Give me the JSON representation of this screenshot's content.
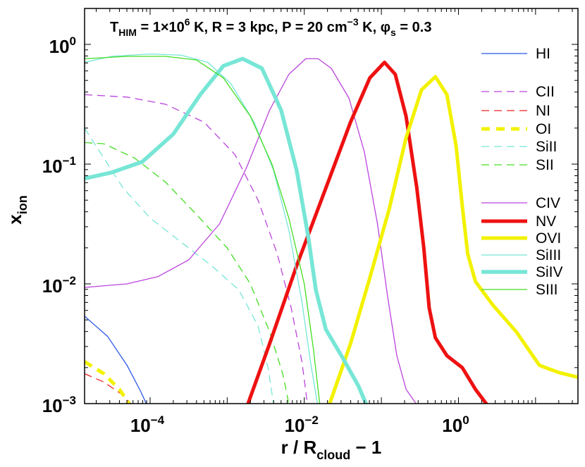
{
  "chart_data": {
    "type": "line",
    "title": {
      "t_sym": "T",
      "t_sub": "HIM",
      "t_val": "= 1×10",
      "t_exp": "6",
      "t_unit": " K,  R = 3 kpc,  P = 20 cm",
      "p_exp": "−3",
      "p_unit": " K,  ",
      "phi": "φ",
      "phi_sub": "s",
      "phi_val": " = 0.3"
    },
    "xlabel": {
      "main": "r / R",
      "sub": "cloud",
      "rest": " − 1"
    },
    "ylabel": {
      "main": "x",
      "sub": "ion"
    },
    "xscale": "log",
    "yscale": "log",
    "xlim_log10": [
      -4.85,
      1.55
    ],
    "ylim_log10": [
      -3,
      0.3
    ],
    "xticks": [
      {
        "log": -4,
        "base": "10",
        "exp": "−4"
      },
      {
        "log": -2,
        "base": "10",
        "exp": "−2"
      },
      {
        "log": 0,
        "base": "10",
        "exp": "0"
      }
    ],
    "yticks": [
      {
        "log": 0,
        "base": "10",
        "exp": "0"
      },
      {
        "log": -1,
        "base": "10",
        "exp": "−1"
      },
      {
        "log": -2,
        "base": "10",
        "exp": "−2"
      },
      {
        "log": -3,
        "base": "10",
        "exp": "−3"
      }
    ],
    "series": [
      {
        "name": "HI",
        "color": "#2b57e6",
        "width": 1.3,
        "dash": "",
        "legend_label": "HI",
        "points": [
          [
            -4.85,
            -2.27
          ],
          [
            -4.55,
            -2.44
          ],
          [
            -4.3,
            -2.68
          ],
          [
            -4.12,
            -2.9
          ],
          [
            -4.05,
            -3.0
          ]
        ]
      },
      {
        "name": "CII",
        "color": "#bb44dd",
        "width": 1.3,
        "dash": "11,7",
        "legend_label": "CII",
        "points": [
          [
            -4.85,
            -0.42
          ],
          [
            -4.3,
            -0.44
          ],
          [
            -3.8,
            -0.5
          ],
          [
            -3.3,
            -0.65
          ],
          [
            -2.9,
            -0.92
          ],
          [
            -2.6,
            -1.3
          ],
          [
            -2.35,
            -1.75
          ],
          [
            -2.17,
            -2.2
          ],
          [
            -2.03,
            -2.65
          ],
          [
            -1.96,
            -3.0
          ]
        ]
      },
      {
        "name": "NI",
        "color": "#ee2222",
        "width": 1.3,
        "dash": "11,7",
        "legend_label": "NI",
        "points": [
          [
            -4.85,
            -2.75
          ],
          [
            -4.6,
            -2.82
          ],
          [
            -4.35,
            -2.93
          ],
          [
            -4.25,
            -3.0
          ]
        ]
      },
      {
        "name": "OI",
        "color": "#f2f200",
        "width": 5,
        "dash": "12,9",
        "legend_label": "OI",
        "points": [
          [
            -4.85,
            -2.65
          ],
          [
            -4.6,
            -2.75
          ],
          [
            -4.4,
            -2.88
          ],
          [
            -4.27,
            -3.0
          ]
        ]
      },
      {
        "name": "SiII",
        "color": "#77e6d6",
        "width": 1.3,
        "dash": "11,7",
        "legend_label": "SiII",
        "points": [
          [
            -4.85,
            -0.7
          ],
          [
            -4.65,
            -0.9
          ],
          [
            -4.35,
            -1.2
          ],
          [
            -4.0,
            -1.45
          ],
          [
            -3.6,
            -1.65
          ],
          [
            -3.2,
            -1.85
          ],
          [
            -2.85,
            -2.05
          ],
          [
            -2.6,
            -2.35
          ],
          [
            -2.47,
            -2.7
          ],
          [
            -2.4,
            -3.0
          ]
        ]
      },
      {
        "name": "SII",
        "color": "#44dd22",
        "width": 1.3,
        "dash": "11,7",
        "legend_label": "SII",
        "points": [
          [
            -4.85,
            -0.82
          ],
          [
            -4.6,
            -0.83
          ],
          [
            -4.2,
            -0.95
          ],
          [
            -3.8,
            -1.15
          ],
          [
            -3.4,
            -1.42
          ],
          [
            -3.0,
            -1.7
          ],
          [
            -2.7,
            -2.0
          ],
          [
            -2.45,
            -2.4
          ],
          [
            -2.28,
            -2.75
          ],
          [
            -2.2,
            -3.0
          ]
        ]
      },
      {
        "name": "CIV",
        "color": "#bb44dd",
        "width": 1.3,
        "dash": "",
        "legend_label": "CIV",
        "points": [
          [
            -4.85,
            -2.03
          ],
          [
            -4.3,
            -2.0
          ],
          [
            -3.9,
            -1.94
          ],
          [
            -3.5,
            -1.8
          ],
          [
            -3.1,
            -1.5
          ],
          [
            -2.75,
            -1.03
          ],
          [
            -2.45,
            -0.55
          ],
          [
            -2.2,
            -0.25
          ],
          [
            -1.98,
            -0.12
          ],
          [
            -1.82,
            -0.12
          ],
          [
            -1.65,
            -0.2
          ],
          [
            -1.42,
            -0.45
          ],
          [
            -1.22,
            -0.9
          ],
          [
            -1.05,
            -1.5
          ],
          [
            -0.92,
            -2.1
          ],
          [
            -0.8,
            -2.6
          ],
          [
            -0.68,
            -2.88
          ],
          [
            -0.55,
            -3.0
          ]
        ]
      },
      {
        "name": "NV",
        "color": "#ee1111",
        "width": 5,
        "dash": "",
        "legend_label": "NV",
        "points": [
          [
            -2.73,
            -3.0
          ],
          [
            -2.45,
            -2.5
          ],
          [
            -2.1,
            -1.85
          ],
          [
            -1.72,
            -1.2
          ],
          [
            -1.4,
            -0.65
          ],
          [
            -1.15,
            -0.28
          ],
          [
            -0.96,
            -0.15
          ],
          [
            -0.82,
            -0.25
          ],
          [
            -0.68,
            -0.6
          ],
          [
            -0.54,
            -1.2
          ],
          [
            -0.45,
            -1.7
          ],
          [
            -0.38,
            -2.2
          ],
          [
            -0.3,
            -2.45
          ],
          [
            -0.15,
            -2.6
          ],
          [
            0.05,
            -2.7
          ],
          [
            0.22,
            -2.88
          ],
          [
            0.36,
            -3.0
          ]
        ]
      },
      {
        "name": "OVI",
        "color": "#f2f200",
        "width": 5,
        "dash": "",
        "legend_label": "OVI",
        "points": [
          [
            -1.67,
            -3.0
          ],
          [
            -1.4,
            -2.5
          ],
          [
            -1.15,
            -1.95
          ],
          [
            -0.9,
            -1.38
          ],
          [
            -0.68,
            -0.78
          ],
          [
            -0.48,
            -0.38
          ],
          [
            -0.3,
            -0.27
          ],
          [
            -0.15,
            -0.42
          ],
          [
            -0.03,
            -0.85
          ],
          [
            0.05,
            -1.35
          ],
          [
            0.12,
            -1.75
          ],
          [
            0.22,
            -1.98
          ],
          [
            0.45,
            -2.18
          ],
          [
            0.75,
            -2.4
          ],
          [
            1.05,
            -2.68
          ],
          [
            1.3,
            -2.74
          ],
          [
            1.55,
            -2.78
          ]
        ]
      },
      {
        "name": "SiIII",
        "color": "#77e6d6",
        "width": 1.3,
        "dash": "",
        "legend_label": "SiIII",
        "points": [
          [
            -4.85,
            -0.15
          ],
          [
            -4.5,
            -0.1
          ],
          [
            -4.0,
            -0.08
          ],
          [
            -3.6,
            -0.09
          ],
          [
            -3.25,
            -0.15
          ],
          [
            -2.95,
            -0.33
          ],
          [
            -2.65,
            -0.65
          ],
          [
            -2.4,
            -1.05
          ],
          [
            -2.2,
            -1.55
          ],
          [
            -2.03,
            -2.15
          ],
          [
            -1.92,
            -2.65
          ],
          [
            -1.83,
            -3.0
          ]
        ]
      },
      {
        "name": "SiIV",
        "color": "#77e6d6",
        "width": 5.5,
        "dash": "",
        "legend_label": "SiIV",
        "points": [
          [
            -4.85,
            -1.12
          ],
          [
            -4.5,
            -1.07
          ],
          [
            -4.1,
            -0.98
          ],
          [
            -3.7,
            -0.75
          ],
          [
            -3.35,
            -0.42
          ],
          [
            -3.05,
            -0.18
          ],
          [
            -2.8,
            -0.12
          ],
          [
            -2.55,
            -0.2
          ],
          [
            -2.3,
            -0.55
          ],
          [
            -2.1,
            -1.05
          ],
          [
            -1.95,
            -1.6
          ],
          [
            -1.85,
            -2.05
          ],
          [
            -1.72,
            -2.38
          ],
          [
            -1.5,
            -2.62
          ],
          [
            -1.3,
            -2.85
          ],
          [
            -1.2,
            -3.0
          ]
        ]
      },
      {
        "name": "SIII",
        "color": "#44dd22",
        "width": 1.3,
        "dash": "",
        "legend_label": "SIII",
        "points": [
          [
            -4.85,
            -0.12
          ],
          [
            -4.3,
            -0.1
          ],
          [
            -3.8,
            -0.1
          ],
          [
            -3.4,
            -0.13
          ],
          [
            -3.05,
            -0.28
          ],
          [
            -2.7,
            -0.6
          ],
          [
            -2.42,
            -1.0
          ],
          [
            -2.2,
            -1.45
          ],
          [
            -2.0,
            -2.0
          ],
          [
            -1.88,
            -2.55
          ],
          [
            -1.8,
            -3.0
          ]
        ]
      }
    ]
  }
}
